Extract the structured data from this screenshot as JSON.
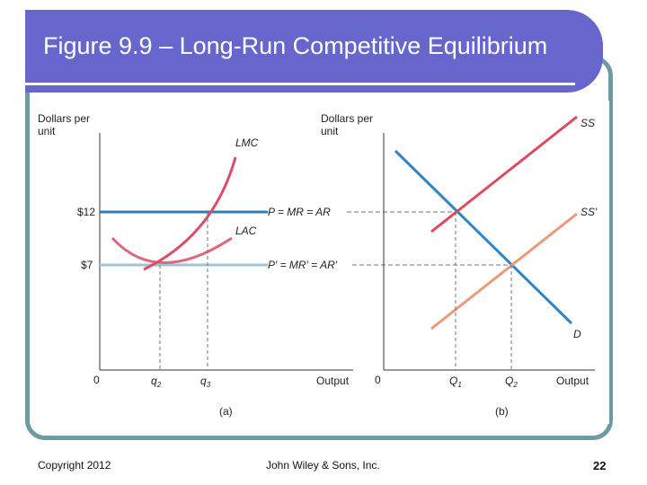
{
  "slide": {
    "title": "Figure 9.9 – Long-Run Competitive Equilibrium",
    "copyright": "Copyright 2012",
    "publisher": "John Wiley & Sons, Inc.",
    "page_number": "22"
  },
  "panel_a": {
    "y_axis_label_line1": "Dollars per",
    "y_axis_label_line2": "unit",
    "x_axis_label": "Output",
    "origin": "0",
    "caption": "(a)",
    "price_high": "$12",
    "price_low": "$7",
    "q2_base": "q",
    "q2_sub": "2",
    "q3_base": "q",
    "q3_sub": "3",
    "lmc_label": "LMC",
    "lac_label": "LAC",
    "p_label": "P = MR = AR",
    "p_prime_label": "P′ = MR′ = AR′"
  },
  "panel_b": {
    "y_axis_label_line1": "Dollars per",
    "y_axis_label_line2": "unit",
    "x_axis_label": "Output",
    "origin": "0",
    "caption": "(b)",
    "q1_base": "Q",
    "q1_sub": "1",
    "q2_base": "Q",
    "q2_sub": "2",
    "ss_label": "SS",
    "ss_prime_label": "SS′",
    "d_label": "D"
  },
  "colors": {
    "title_bar": "#6666cc",
    "frame": "#6d9aa3",
    "price_line": "#2e7fb0",
    "price_line_low": "#9cc3df",
    "lmc": "#d94f6a",
    "lac": "#e0687e",
    "ss": "#dc4a62",
    "ss_prime": "#eb9a78",
    "demand": "#2f86c4"
  }
}
